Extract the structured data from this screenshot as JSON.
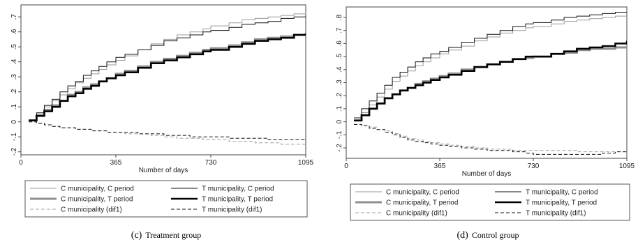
{
  "chart_data": [
    {
      "type": "line",
      "caption_letter": "(c)",
      "caption_text": "Treatment group",
      "xlabel": "Number of days",
      "ylabel": "",
      "xlim": [
        0,
        1095
      ],
      "ylim": [
        -0.22,
        0.78
      ],
      "xticks": [
        0,
        365,
        730,
        1095
      ],
      "yticks": [
        -0.2,
        -0.1,
        0,
        0.1,
        0.2,
        0.3,
        0.4,
        0.5,
        0.6,
        0.7
      ],
      "ytick_labels": [
        "-.2",
        "-.1",
        "0",
        ".1",
        ".2",
        ".3",
        ".4",
        ".5",
        ".6",
        ".7"
      ],
      "grid": false,
      "legend_position": "bottom",
      "x": [
        30,
        60,
        90,
        120,
        150,
        180,
        210,
        240,
        270,
        300,
        330,
        365,
        400,
        450,
        500,
        550,
        600,
        650,
        700,
        730,
        800,
        850,
        900,
        950,
        1000,
        1050,
        1095
      ],
      "series": [
        {
          "name": "C municipality, C period",
          "color": "#9a9a9a",
          "width": 1,
          "dash": "",
          "values": [
            0.01,
            0.05,
            0.1,
            0.14,
            0.18,
            0.22,
            0.26,
            0.29,
            0.32,
            0.35,
            0.38,
            0.41,
            0.44,
            0.48,
            0.52,
            0.55,
            0.58,
            0.6,
            0.62,
            0.64,
            0.66,
            0.68,
            0.69,
            0.7,
            0.71,
            0.72,
            0.73
          ]
        },
        {
          "name": "T municipality, C period",
          "color": "#111111",
          "width": 1,
          "dash": "",
          "values": [
            0.01,
            0.06,
            0.11,
            0.15,
            0.2,
            0.24,
            0.27,
            0.31,
            0.34,
            0.37,
            0.4,
            0.43,
            0.45,
            0.48,
            0.51,
            0.54,
            0.56,
            0.58,
            0.6,
            0.61,
            0.63,
            0.65,
            0.66,
            0.67,
            0.69,
            0.7,
            0.71
          ]
        },
        {
          "name": "C municipality, T period",
          "color": "#8f8f8f",
          "width": 3,
          "dash": "",
          "values": [
            0.01,
            0.04,
            0.08,
            0.11,
            0.14,
            0.18,
            0.2,
            0.23,
            0.25,
            0.27,
            0.29,
            0.32,
            0.34,
            0.37,
            0.4,
            0.42,
            0.44,
            0.46,
            0.48,
            0.49,
            0.51,
            0.53,
            0.55,
            0.56,
            0.57,
            0.58,
            0.59
          ]
        },
        {
          "name": "T municipality, T period",
          "color": "#000000",
          "width": 2.5,
          "dash": "",
          "values": [
            0.01,
            0.04,
            0.07,
            0.1,
            0.14,
            0.17,
            0.19,
            0.22,
            0.24,
            0.27,
            0.29,
            0.31,
            0.33,
            0.36,
            0.39,
            0.41,
            0.43,
            0.45,
            0.47,
            0.48,
            0.5,
            0.52,
            0.54,
            0.55,
            0.56,
            0.58,
            0.59
          ]
        },
        {
          "name": "C municipality (dif1)",
          "color": "#a0a0a0",
          "width": 1,
          "dash": "5,3",
          "values": [
            0.0,
            -0.01,
            -0.02,
            -0.03,
            -0.04,
            -0.04,
            -0.05,
            -0.05,
            -0.06,
            -0.06,
            -0.07,
            -0.07,
            -0.08,
            -0.08,
            -0.09,
            -0.1,
            -0.11,
            -0.11,
            -0.12,
            -0.12,
            -0.13,
            -0.13,
            -0.14,
            -0.14,
            -0.15,
            -0.15,
            -0.15
          ]
        },
        {
          "name": "T municipality (dif1)",
          "color": "#111111",
          "width": 1,
          "dash": "5,3",
          "values": [
            0.0,
            -0.01,
            -0.02,
            -0.03,
            -0.04,
            -0.04,
            -0.05,
            -0.05,
            -0.06,
            -0.06,
            -0.07,
            -0.07,
            -0.07,
            -0.08,
            -0.08,
            -0.09,
            -0.09,
            -0.1,
            -0.1,
            -0.1,
            -0.11,
            -0.11,
            -0.11,
            -0.12,
            -0.12,
            -0.12,
            -0.12
          ]
        }
      ]
    },
    {
      "type": "line",
      "caption_letter": "(d)",
      "caption_text": "Control group",
      "xlabel": "Number of days",
      "ylabel": "",
      "xlim": [
        0,
        1095
      ],
      "ylim": [
        -0.28,
        0.88
      ],
      "xticks": [
        0,
        365,
        730,
        1095
      ],
      "yticks": [
        -0.2,
        -0.1,
        0,
        0.1,
        0.2,
        0.3,
        0.4,
        0.5,
        0.6,
        0.7,
        0.8
      ],
      "ytick_labels": [
        "-.2",
        "-.1",
        "0",
        ".1",
        ".2",
        ".3",
        ".4",
        ".5",
        ".6",
        ".7",
        ".8"
      ],
      "grid": false,
      "legend_position": "bottom",
      "x": [
        30,
        60,
        90,
        120,
        150,
        180,
        210,
        240,
        270,
        300,
        330,
        365,
        400,
        450,
        500,
        550,
        600,
        650,
        700,
        730,
        800,
        850,
        900,
        950,
        1000,
        1050,
        1095
      ],
      "series": [
        {
          "name": "C municipality, C period",
          "color": "#9a9a9a",
          "width": 1,
          "dash": "",
          "values": [
            0.01,
            0.07,
            0.13,
            0.19,
            0.25,
            0.31,
            0.35,
            0.39,
            0.43,
            0.46,
            0.49,
            0.52,
            0.55,
            0.58,
            0.62,
            0.65,
            0.68,
            0.7,
            0.72,
            0.73,
            0.75,
            0.77,
            0.78,
            0.79,
            0.8,
            0.81,
            0.81
          ]
        },
        {
          "name": "T municipality, C period",
          "color": "#111111",
          "width": 1,
          "dash": "",
          "values": [
            0.03,
            0.1,
            0.16,
            0.22,
            0.28,
            0.34,
            0.38,
            0.42,
            0.46,
            0.49,
            0.52,
            0.54,
            0.57,
            0.61,
            0.64,
            0.67,
            0.7,
            0.73,
            0.75,
            0.76,
            0.78,
            0.8,
            0.81,
            0.82,
            0.83,
            0.84,
            0.84
          ]
        },
        {
          "name": "C municipality, T period",
          "color": "#8f8f8f",
          "width": 3,
          "dash": "",
          "values": [
            0.01,
            0.05,
            0.1,
            0.14,
            0.18,
            0.21,
            0.24,
            0.26,
            0.29,
            0.31,
            0.33,
            0.35,
            0.37,
            0.4,
            0.42,
            0.44,
            0.46,
            0.48,
            0.49,
            0.5,
            0.52,
            0.53,
            0.55,
            0.56,
            0.56,
            0.57,
            0.58
          ]
        },
        {
          "name": "T municipality, T period",
          "color": "#000000",
          "width": 2.5,
          "dash": "",
          "values": [
            0.01,
            0.05,
            0.1,
            0.14,
            0.18,
            0.21,
            0.24,
            0.26,
            0.28,
            0.3,
            0.32,
            0.34,
            0.36,
            0.39,
            0.42,
            0.44,
            0.46,
            0.48,
            0.5,
            0.5,
            0.52,
            0.54,
            0.56,
            0.57,
            0.58,
            0.6,
            0.62
          ]
        },
        {
          "name": "C municipality (dif1)",
          "color": "#a0a0a0",
          "width": 1,
          "dash": "5,3",
          "values": [
            -0.02,
            -0.03,
            -0.04,
            -0.06,
            -0.07,
            -0.09,
            -0.11,
            -0.13,
            -0.14,
            -0.15,
            -0.16,
            -0.17,
            -0.18,
            -0.19,
            -0.2,
            -0.21,
            -0.21,
            -0.22,
            -0.22,
            -0.22,
            -0.22,
            -0.22,
            -0.23,
            -0.23,
            -0.23,
            -0.23,
            -0.23
          ]
        },
        {
          "name": "T municipality (dif1)",
          "color": "#111111",
          "width": 1,
          "dash": "5,3",
          "values": [
            -0.02,
            -0.03,
            -0.05,
            -0.06,
            -0.08,
            -0.1,
            -0.12,
            -0.14,
            -0.15,
            -0.16,
            -0.17,
            -0.18,
            -0.19,
            -0.2,
            -0.21,
            -0.22,
            -0.22,
            -0.23,
            -0.24,
            -0.25,
            -0.25,
            -0.25,
            -0.25,
            -0.25,
            -0.24,
            -0.23,
            -0.22
          ]
        }
      ]
    }
  ]
}
